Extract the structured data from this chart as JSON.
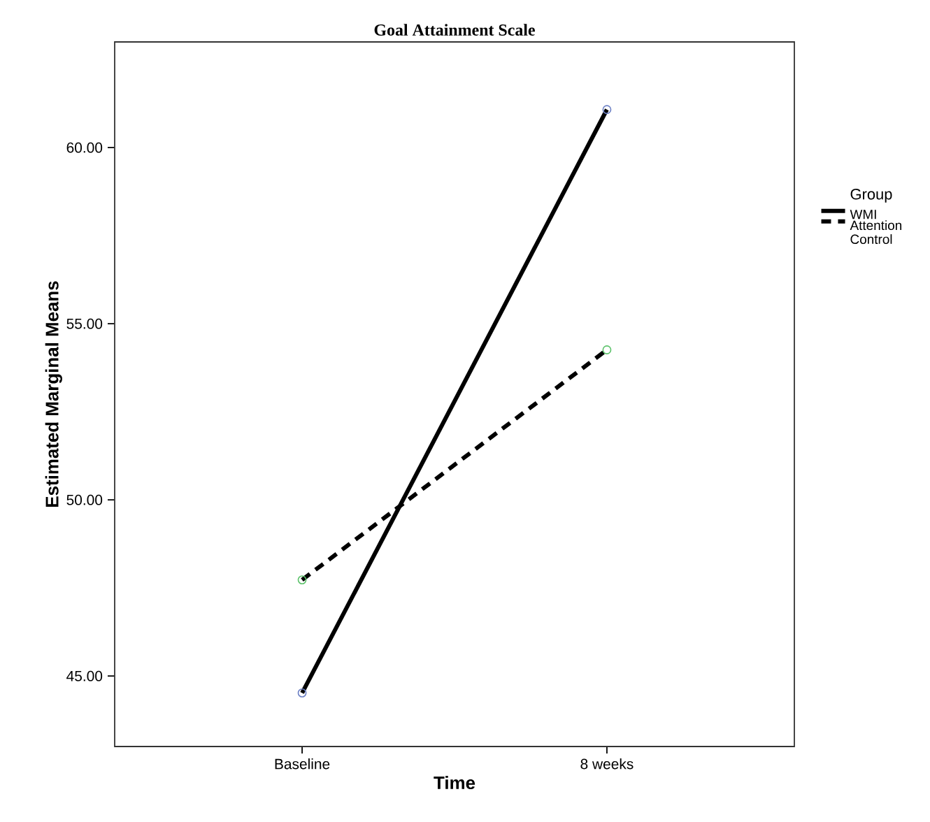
{
  "chart_data": {
    "type": "line",
    "title": "Goal Attainment Scale",
    "xlabel": "Time",
    "ylabel": "Estimated Marginal Means",
    "legend_title": "Group",
    "categories": [
      "Baseline",
      "8 weeks"
    ],
    "series": [
      {
        "name": "WMI",
        "color": "#000000",
        "colors": [
          "#6b7fc4",
          "#6b7fc4"
        ],
        "line_style": "solid",
        "values": [
          44.52,
          61.08
        ]
      },
      {
        "name": "Attention Control",
        "color": "#000000",
        "colors": [
          "#5cc26a",
          "#5cc26a"
        ],
        "line_style": "dashed",
        "values": [
          47.73,
          54.26
        ]
      }
    ],
    "ylim": [
      43,
      63
    ],
    "yticks": [
      {
        "value": 45,
        "label": "45.00"
      },
      {
        "value": 50,
        "label": "50.00"
      },
      {
        "value": 55,
        "label": "55.00"
      },
      {
        "value": 60,
        "label": "60.00"
      }
    ],
    "marker": "circle",
    "legend": "right",
    "grid": false
  }
}
